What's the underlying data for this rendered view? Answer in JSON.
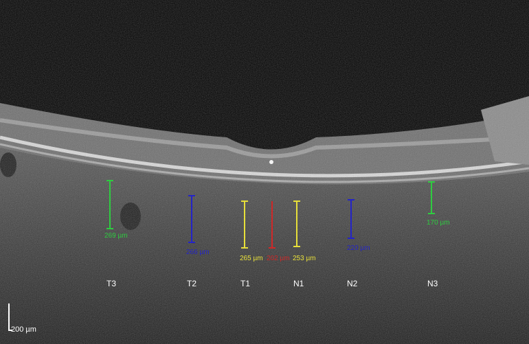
{
  "image": {
    "zones": [
      "T3",
      "T2",
      "T1",
      "N1",
      "N2",
      "N3"
    ],
    "measurements": [
      {
        "zone": "T3",
        "label": "269 µm",
        "color": "#2ecc40"
      },
      {
        "zone": "T2",
        "label": "266 µm",
        "color": "#2424c8"
      },
      {
        "zone": "T1",
        "label": "265 µm",
        "color": "#e8e03a"
      },
      {
        "zone": "center",
        "label": "202 µm",
        "color": "#d02828"
      },
      {
        "zone": "N1",
        "label": "253 µm",
        "color": "#e8e03a"
      },
      {
        "zone": "N2",
        "label": "220 µm",
        "color": "#2424c8"
      },
      {
        "zone": "N3",
        "label": "170 µm",
        "color": "#2ecc40"
      }
    ],
    "scale_bar": "200 µm"
  }
}
